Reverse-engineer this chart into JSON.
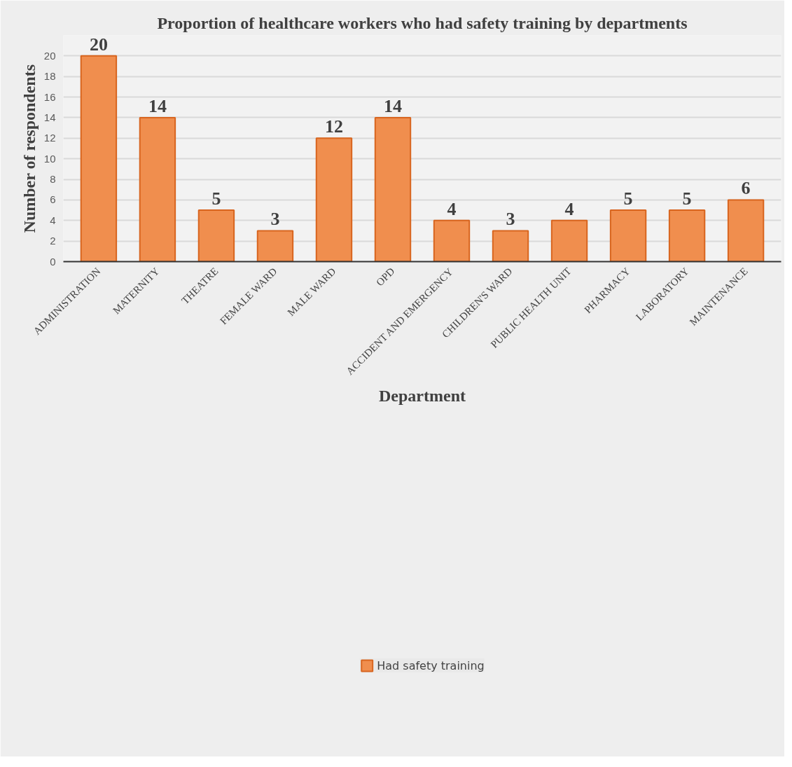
{
  "chart_data": {
    "type": "bar",
    "title": "Proportion of healthcare workers who had safety training by departments",
    "xlabel": "Department",
    "ylabel": "Number of respondents",
    "categories": [
      "ADMINISTRATION",
      "MATERNITY",
      "THEATRE",
      "FEMALE WARD",
      "MALE WARD",
      "OPD",
      "ACCIDENT AND EMERGENCY",
      "CHILDREN'S WARD",
      "PUBLIC HEALTH UNIT",
      "PHARMACY",
      "LABORATORY",
      "MAINTENANCE"
    ],
    "series": [
      {
        "name": "Had safety training",
        "color": "#f08e4e",
        "values": [
          20,
          14,
          5,
          3,
          12,
          14,
          4,
          3,
          4,
          5,
          5,
          6
        ]
      }
    ],
    "ylim": [
      0,
      22
    ],
    "yticks": [
      0,
      2,
      4,
      6,
      8,
      10,
      12,
      14,
      16,
      18,
      20
    ],
    "grid": "y",
    "legend": "bottom",
    "data_labels": true
  }
}
